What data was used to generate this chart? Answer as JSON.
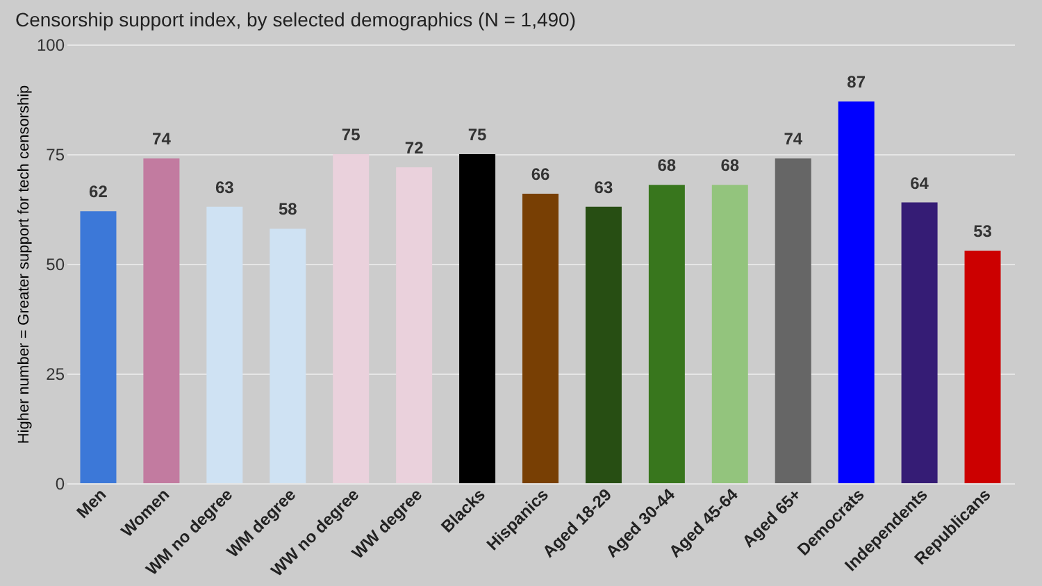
{
  "chart_data": {
    "type": "bar",
    "title": "Censorship support index, by selected demographics (N = 1,490)",
    "ylabel": "Higher number = Greater support for tech censorship",
    "categories": [
      "Men",
      "Women",
      "WM no degree",
      "WM degree",
      "WW no degree",
      "WW degree",
      "Blacks",
      "Hispanics",
      "Aged 18-29",
      "Aged 30-44",
      "Aged 45-64",
      "Aged 65+",
      "Democrats",
      "Independents",
      "Republicans"
    ],
    "values": [
      62,
      74,
      63,
      58,
      75,
      72,
      75,
      66,
      63,
      68,
      68,
      74,
      87,
      64,
      53
    ],
    "colors": [
      "#3c78d8",
      "#c27ba0",
      "#cfe2f3",
      "#cfe2f3",
      "#ead1dc",
      "#ead1dc",
      "#000000",
      "#783f04",
      "#274e13",
      "#38761d",
      "#93c47d",
      "#666666",
      "#0000ff",
      "#351c75",
      "#cc0000"
    ],
    "ylim": [
      0,
      100
    ],
    "yticks": [
      0,
      25,
      50,
      75,
      100
    ],
    "grid": "y",
    "data_labels": true
  }
}
